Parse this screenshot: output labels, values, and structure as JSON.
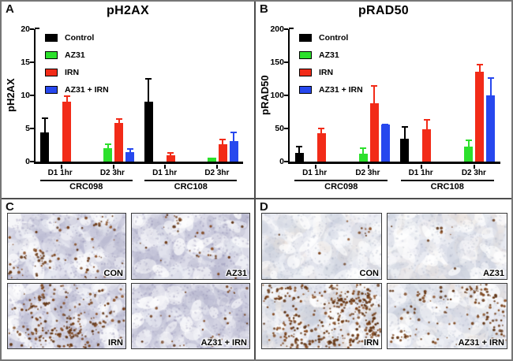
{
  "colors": {
    "control": "#000000",
    "az31": "#2ce02c",
    "irn": "#f22b18",
    "az31_irn": "#2748ee",
    "axis": "#000000",
    "outer_border": "#767676",
    "divider": "#4d4d4d"
  },
  "panels": {
    "A": {
      "letter": "A"
    },
    "B": {
      "letter": "B"
    },
    "C": {
      "letter": "C"
    },
    "D": {
      "letter": "D"
    }
  },
  "chart_data": [
    {
      "type": "bar",
      "panel": "A",
      "title": "pH2AX",
      "xlabel": "",
      "ylabel": "pH2AX",
      "ylim": [
        0,
        20
      ],
      "yticks": [
        0,
        5,
        10,
        15,
        20
      ],
      "grid": false,
      "legend_position": "top-left",
      "group_labels": [
        "D1 1hr",
        "D2 3hr",
        "D1 1hr",
        "D2 3hr"
      ],
      "cohorts": [
        {
          "label": "CRC098",
          "groups": [
            0,
            1
          ]
        },
        {
          "label": "CRC108",
          "groups": [
            2,
            3
          ]
        }
      ],
      "series": [
        {
          "name": "Control",
          "color_key": "control",
          "values": [
            4.4,
            0,
            9.0,
            0
          ],
          "errors": [
            2.4,
            0,
            3.7,
            0
          ]
        },
        {
          "name": "AZ31",
          "color_key": "az31",
          "values": [
            0,
            2.0,
            0,
            0.6
          ],
          "errors": [
            0,
            0.8,
            0,
            0
          ]
        },
        {
          "name": "IRN",
          "color_key": "irn",
          "values": [
            9.0,
            5.8,
            1.0,
            2.6
          ],
          "errors": [
            1.1,
            0.9,
            0.5,
            1.0
          ]
        },
        {
          "name": "AZ31 + IRN",
          "color_key": "az31_irn",
          "values": [
            0,
            1.4,
            0,
            3.1
          ],
          "errors": [
            0,
            0.7,
            0,
            1.5
          ]
        }
      ]
    },
    {
      "type": "bar",
      "panel": "B",
      "title": "pRAD50",
      "xlabel": "",
      "ylabel": "pRAD50",
      "ylim": [
        0,
        200
      ],
      "yticks": [
        0,
        50,
        100,
        150,
        200
      ],
      "grid": false,
      "legend_position": "top-left",
      "group_labels": [
        "D1 1hr",
        "D2 3hr",
        "D1 1hr",
        "D2 3hr"
      ],
      "cohorts": [
        {
          "label": "CRC098",
          "groups": [
            0,
            1
          ]
        },
        {
          "label": "CRC108",
          "groups": [
            2,
            3
          ]
        }
      ],
      "series": [
        {
          "name": "Control",
          "color_key": "control",
          "values": [
            13,
            0,
            34,
            0
          ],
          "errors": [
            12,
            0,
            21,
            0
          ]
        },
        {
          "name": "AZ31",
          "color_key": "az31",
          "values": [
            0,
            12,
            0,
            23
          ],
          "errors": [
            0,
            11,
            0,
            12
          ]
        },
        {
          "name": "IRN",
          "color_key": "irn",
          "values": [
            43,
            88,
            49,
            136
          ],
          "errors": [
            10,
            29,
            16,
            13
          ]
        },
        {
          "name": "AZ31 + IRN",
          "color_key": "az31_irn",
          "values": [
            0,
            56,
            0,
            100
          ],
          "errors": [
            0,
            2,
            0,
            28
          ]
        }
      ]
    }
  ],
  "histology": {
    "C": {
      "images": [
        {
          "label": "CON",
          "stain_density": "moderate",
          "tint": "lavender"
        },
        {
          "label": "AZ31",
          "stain_density": "low",
          "tint": "lavender"
        },
        {
          "label": "IRN",
          "stain_density": "high",
          "tint": "lavender"
        },
        {
          "label": "AZ31 + IRN",
          "stain_density": "low",
          "tint": "lavender"
        }
      ]
    },
    "D": {
      "images": [
        {
          "label": "CON",
          "stain_density": "very-low",
          "tint": "pale-blue"
        },
        {
          "label": "AZ31",
          "stain_density": "very-low",
          "tint": "pale-blue"
        },
        {
          "label": "IRN",
          "stain_density": "very-high",
          "tint": "pale-blue"
        },
        {
          "label": "AZ31 + IRN",
          "stain_density": "medium-high",
          "tint": "pale-blue"
        }
      ]
    }
  }
}
